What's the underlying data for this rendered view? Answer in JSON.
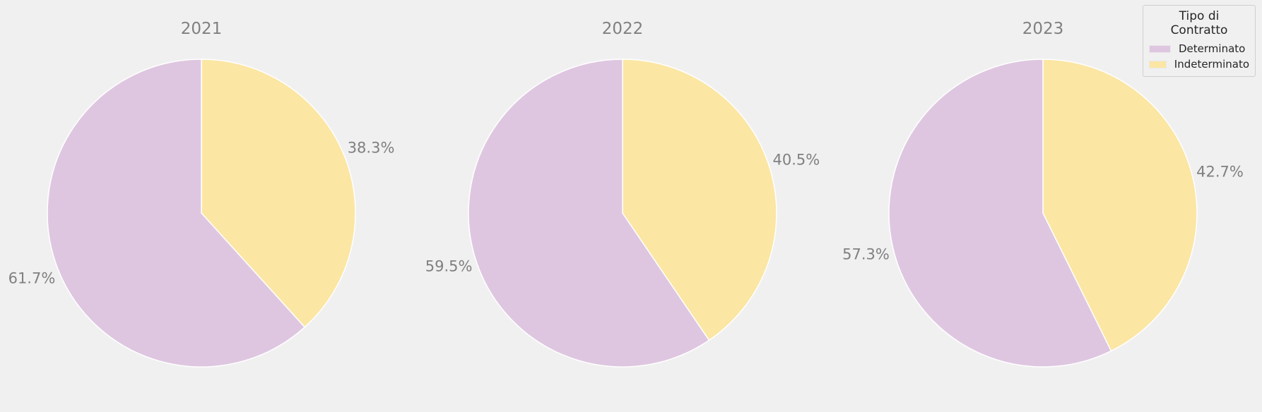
{
  "legend": {
    "title": "Tipo di Contratto",
    "items": [
      {
        "label": "Determinato",
        "color": "#dec6e0"
      },
      {
        "label": "Indeterminato",
        "color": "#fbe6a3"
      }
    ]
  },
  "chart_data": [
    {
      "type": "pie",
      "title": "2021",
      "labels": [
        "Determinato",
        "Indeterminato"
      ],
      "values": [
        61.7,
        38.3
      ],
      "value_labels": [
        "61.7%",
        "38.3%"
      ]
    },
    {
      "type": "pie",
      "title": "2022",
      "labels": [
        "Determinato",
        "Indeterminato"
      ],
      "values": [
        59.5,
        40.5
      ],
      "value_labels": [
        "59.5%",
        "40.5%"
      ]
    },
    {
      "type": "pie",
      "title": "2023",
      "labels": [
        "Determinato",
        "Indeterminato"
      ],
      "values": [
        57.3,
        42.7
      ],
      "value_labels": [
        "57.3%",
        "42.7%"
      ]
    }
  ]
}
